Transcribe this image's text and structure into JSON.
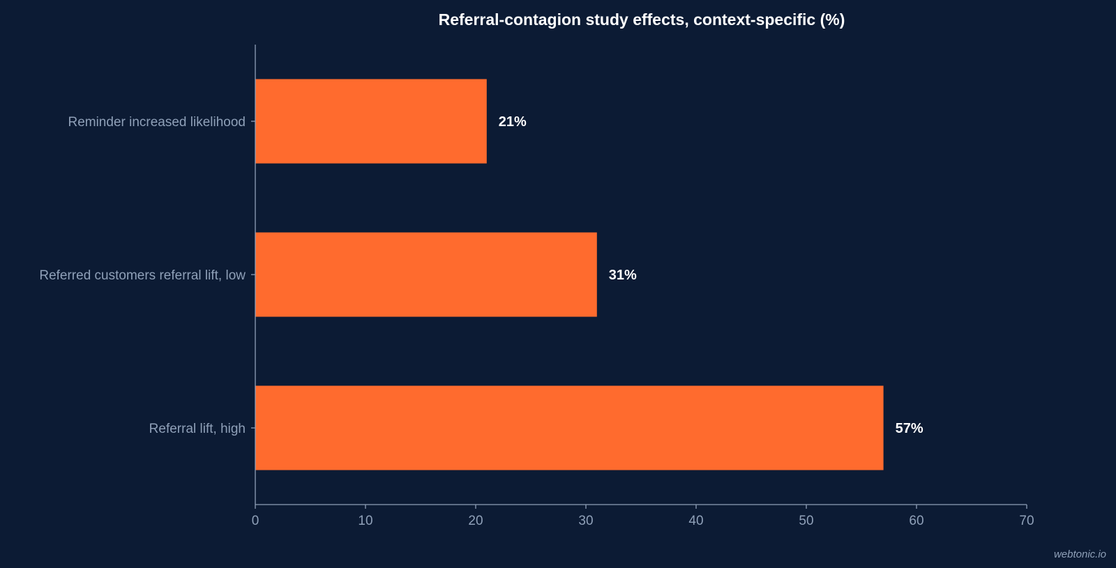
{
  "chart_data": {
    "type": "bar",
    "orientation": "horizontal",
    "title": "Referral-contagion study effects, context-specific (%)",
    "categories": [
      "Reminder increased likelihood",
      "Referred customers referral lift, low",
      "Referral lift, high"
    ],
    "values": [
      21,
      31,
      57
    ],
    "value_labels": [
      "21%",
      "31%",
      "57%"
    ],
    "xlim": [
      0,
      70
    ],
    "xticks": [
      0,
      10,
      20,
      30,
      40,
      50,
      60,
      70
    ],
    "xlabel": "",
    "ylabel": "",
    "grid": false,
    "bar_color": "#ff6b2e"
  },
  "colors": {
    "background": "#0c1b34",
    "bar": "#ff6b2e",
    "axis": "#8fa0b8",
    "text": "#ffffff"
  },
  "watermark": "webtonic.io"
}
